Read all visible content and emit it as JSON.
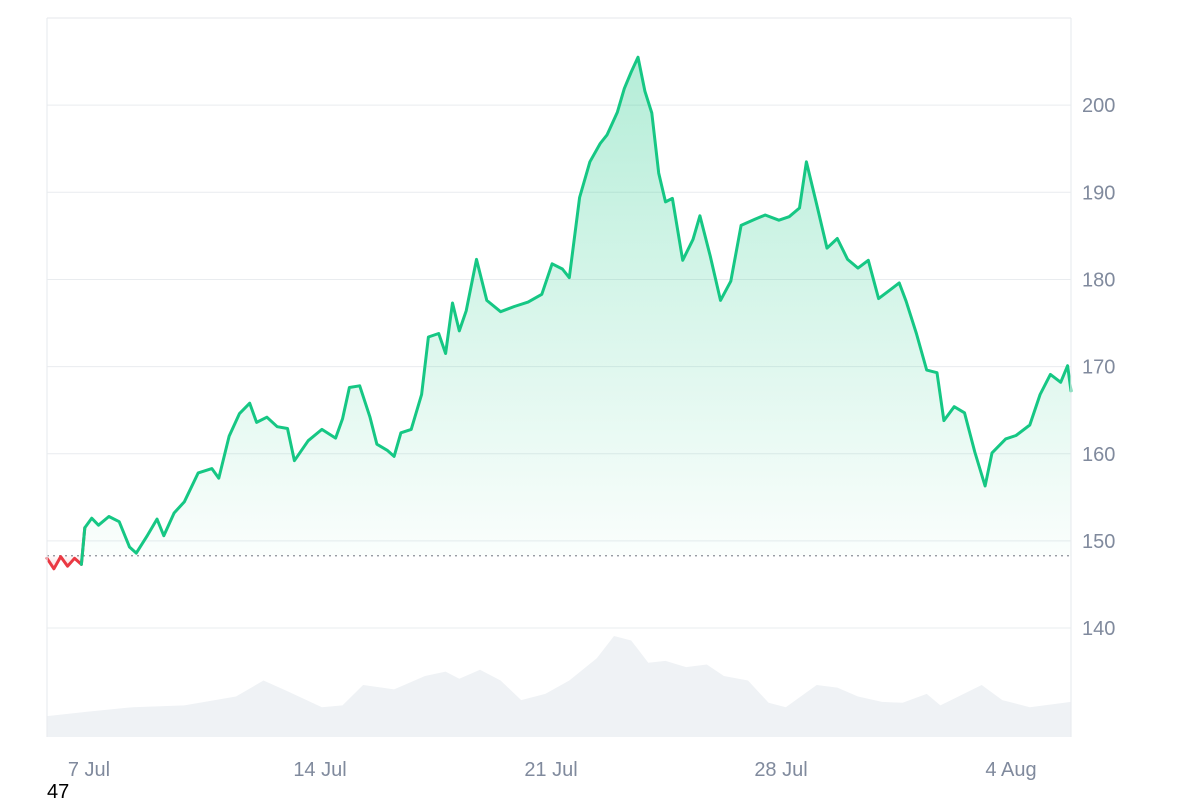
{
  "chart_data": {
    "type": "area",
    "y_ticks": [
      "200",
      "190",
      "180",
      "170",
      "160",
      "150",
      "140"
    ],
    "x_ticks": [
      "7 Jul",
      "14 Jul",
      "21 Jul",
      "28 Jul",
      "4 Aug"
    ],
    "ylim": [
      127.5,
      210
    ],
    "baseline": 148.3,
    "grid": true,
    "colors": {
      "up": "#16c784",
      "down": "#ea3943",
      "volume": "#eff2f5",
      "grid": "#e9ecef",
      "axis_text": "#808a9d"
    },
    "series": [
      {
        "values": [
          [
            0,
            148
          ],
          [
            0.2,
            146.8
          ],
          [
            0.4,
            148.2
          ],
          [
            0.6,
            147.1
          ],
          [
            0.8,
            148
          ],
          [
            1.0,
            147.3
          ],
          [
            1.1,
            151.5
          ],
          [
            1.3,
            152.6
          ],
          [
            1.5,
            151.8
          ],
          [
            1.8,
            152.8
          ],
          [
            2.1,
            152.2
          ],
          [
            2.4,
            149.3
          ],
          [
            2.6,
            148.6
          ],
          [
            2.9,
            150.5
          ],
          [
            3.2,
            152.5
          ],
          [
            3.4,
            150.6
          ],
          [
            3.7,
            153.2
          ],
          [
            4.0,
            154.5
          ],
          [
            4.4,
            157.8
          ],
          [
            4.8,
            158.3
          ],
          [
            5.0,
            157.2
          ],
          [
            5.3,
            162
          ],
          [
            5.6,
            164.6
          ],
          [
            5.9,
            165.8
          ],
          [
            6.1,
            163.6
          ],
          [
            6.4,
            164.2
          ],
          [
            6.7,
            163.1
          ],
          [
            7.0,
            162.9
          ],
          [
            7.2,
            159.2
          ],
          [
            7.6,
            161.5
          ],
          [
            8.0,
            162.8
          ],
          [
            8.4,
            161.8
          ],
          [
            8.6,
            164
          ],
          [
            8.8,
            167.6
          ],
          [
            9.1,
            167.8
          ],
          [
            9.4,
            164.2
          ],
          [
            9.6,
            161.1
          ],
          [
            9.9,
            160.4
          ],
          [
            10.1,
            159.7
          ],
          [
            10.3,
            162.4
          ],
          [
            10.6,
            162.8
          ],
          [
            10.9,
            166.8
          ],
          [
            11.1,
            173.4
          ],
          [
            11.4,
            173.8
          ],
          [
            11.6,
            171.5
          ],
          [
            11.8,
            177.3
          ],
          [
            12.0,
            174.1
          ],
          [
            12.2,
            176.4
          ],
          [
            12.5,
            182.3
          ],
          [
            12.8,
            177.6
          ],
          [
            13.2,
            176.3
          ],
          [
            13.6,
            176.9
          ],
          [
            14.0,
            177.4
          ],
          [
            14.4,
            178.3
          ],
          [
            14.7,
            181.8
          ],
          [
            15.0,
            181.2
          ],
          [
            15.2,
            180.2
          ],
          [
            15.5,
            189.4
          ],
          [
            15.8,
            193.5
          ],
          [
            16.1,
            195.6
          ],
          [
            16.3,
            196.6
          ],
          [
            16.6,
            199.2
          ],
          [
            16.8,
            201.9
          ],
          [
            17.0,
            203.8
          ],
          [
            17.2,
            205.5
          ],
          [
            17.4,
            201.6
          ],
          [
            17.6,
            199.1
          ],
          [
            17.8,
            192.2
          ],
          [
            18.0,
            188.9
          ],
          [
            18.2,
            189.3
          ],
          [
            18.5,
            182.2
          ],
          [
            18.8,
            184.6
          ],
          [
            19.0,
            187.3
          ],
          [
            19.3,
            182.7
          ],
          [
            19.6,
            177.6
          ],
          [
            19.9,
            179.8
          ],
          [
            20.2,
            186.2
          ],
          [
            20.6,
            186.9
          ],
          [
            20.9,
            187.4
          ],
          [
            21.3,
            186.8
          ],
          [
            21.6,
            187.2
          ],
          [
            21.9,
            188.2
          ],
          [
            22.1,
            193.5
          ],
          [
            22.4,
            188.6
          ],
          [
            22.7,
            183.6
          ],
          [
            23.0,
            184.7
          ],
          [
            23.3,
            182.3
          ],
          [
            23.6,
            181.3
          ],
          [
            23.9,
            182.2
          ],
          [
            24.2,
            177.8
          ],
          [
            24.5,
            178.7
          ],
          [
            24.8,
            179.6
          ],
          [
            25.0,
            177.5
          ],
          [
            25.3,
            173.8
          ],
          [
            25.6,
            169.6
          ],
          [
            25.9,
            169.3
          ],
          [
            26.1,
            163.8
          ],
          [
            26.4,
            165.4
          ],
          [
            26.7,
            164.7
          ],
          [
            27.0,
            160.2
          ],
          [
            27.3,
            156.3
          ],
          [
            27.5,
            160.1
          ],
          [
            27.9,
            161.7
          ],
          [
            28.2,
            162.1
          ],
          [
            28.6,
            163.3
          ],
          [
            28.9,
            166.8
          ],
          [
            29.2,
            169.1
          ],
          [
            29.5,
            168.2
          ],
          [
            29.7,
            170.1
          ],
          [
            29.8,
            167.2
          ]
        ]
      }
    ],
    "volume": [
      [
        0,
        0.1
      ],
      [
        1.2,
        0.15
      ],
      [
        2.5,
        0.2
      ],
      [
        4,
        0.22
      ],
      [
        5.5,
        0.32
      ],
      [
        6.3,
        0.5
      ],
      [
        7,
        0.38
      ],
      [
        8,
        0.2
      ],
      [
        8.6,
        0.22
      ],
      [
        9.2,
        0.45
      ],
      [
        10.1,
        0.4
      ],
      [
        11,
        0.55
      ],
      [
        11.6,
        0.6
      ],
      [
        12.0,
        0.52
      ],
      [
        12.6,
        0.62
      ],
      [
        13.2,
        0.5
      ],
      [
        13.8,
        0.28
      ],
      [
        14.5,
        0.35
      ],
      [
        15.2,
        0.5
      ],
      [
        16.0,
        0.75
      ],
      [
        16.5,
        1.0
      ],
      [
        17.0,
        0.95
      ],
      [
        17.5,
        0.7
      ],
      [
        18.0,
        0.72
      ],
      [
        18.6,
        0.65
      ],
      [
        19.2,
        0.68
      ],
      [
        19.7,
        0.55
      ],
      [
        20.4,
        0.5
      ],
      [
        21.0,
        0.25
      ],
      [
        21.5,
        0.2
      ],
      [
        22.4,
        0.45
      ],
      [
        23.0,
        0.42
      ],
      [
        23.6,
        0.32
      ],
      [
        24.3,
        0.26
      ],
      [
        24.9,
        0.25
      ],
      [
        25.6,
        0.35
      ],
      [
        26.0,
        0.22
      ],
      [
        27.2,
        0.45
      ],
      [
        27.8,
        0.28
      ],
      [
        28.6,
        0.2
      ],
      [
        29.8,
        0.26
      ]
    ]
  },
  "footer": {
    "count": "47"
  }
}
